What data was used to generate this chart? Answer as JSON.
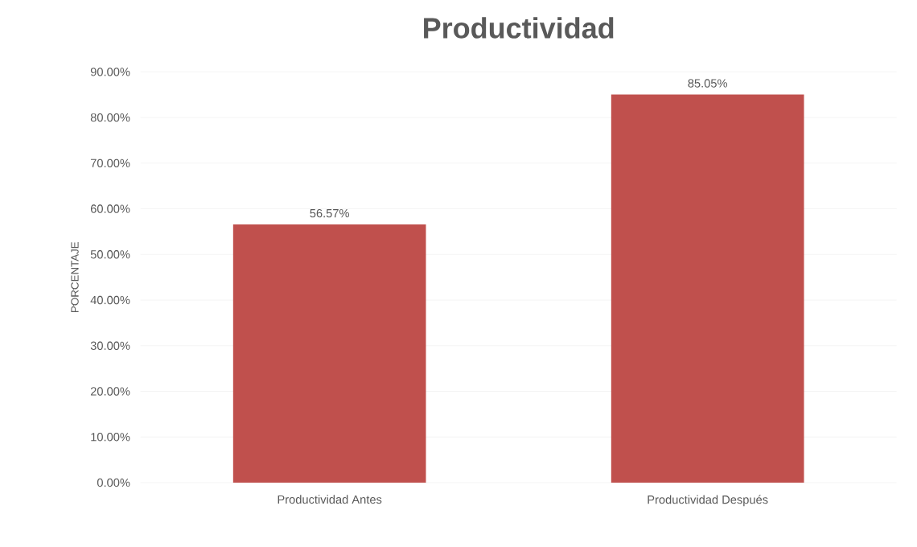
{
  "chart_data": {
    "type": "bar",
    "title": "Productividad",
    "ylabel": "PORCENTAJE",
    "categories": [
      "Productividad Antes",
      "Productividad Después"
    ],
    "values": [
      56.57,
      85.05
    ],
    "value_labels": [
      "56.57%",
      "85.05%"
    ],
    "color": "#c0504d",
    "ylim": [
      0,
      90
    ],
    "yticks": [
      {
        "value": 0,
        "label": "0.00%"
      },
      {
        "value": 10,
        "label": "10.00%"
      },
      {
        "value": 20,
        "label": "20.00%"
      },
      {
        "value": 30,
        "label": "30.00%"
      },
      {
        "value": 40,
        "label": "40.00%"
      },
      {
        "value": 50,
        "label": "50.00%"
      },
      {
        "value": 60,
        "label": "60.00%"
      },
      {
        "value": 70,
        "label": "70.00%"
      },
      {
        "value": 80,
        "label": "80.00%"
      },
      {
        "value": 90,
        "label": "90.00%"
      }
    ],
    "grid": "y"
  }
}
